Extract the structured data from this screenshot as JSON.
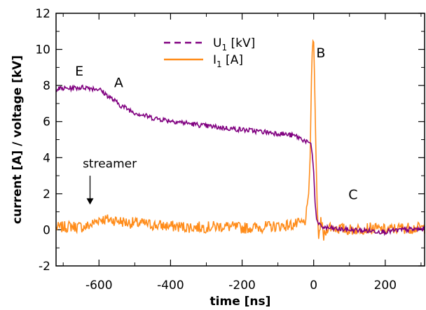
{
  "chart_data": {
    "type": "line",
    "title": "",
    "xlabel": "time [ns]",
    "ylabel": "current [A] / voltage [kV]",
    "xlim": [
      -720,
      310
    ],
    "ylim": [
      -2,
      12
    ],
    "x_ticks": [
      -600,
      -400,
      -200,
      0,
      200
    ],
    "y_ticks": [
      -2,
      0,
      2,
      4,
      6,
      8,
      10,
      12
    ],
    "grid": false,
    "legend_position": "top-center",
    "series": [
      {
        "name": "U1 [kV]",
        "legend_main": "U",
        "legend_sub": "1",
        "legend_unit": " [kV]",
        "color": "#800080",
        "style": "dashed",
        "x": [
          -720,
          -680,
          -640,
          -600,
          -580,
          -560,
          -540,
          -500,
          -450,
          -400,
          -350,
          -300,
          -250,
          -200,
          -150,
          -100,
          -50,
          -20,
          -8,
          -4,
          0,
          4,
          8,
          15,
          25,
          40,
          60,
          100,
          150,
          200,
          250,
          310
        ],
        "y": [
          7.8,
          7.85,
          7.9,
          7.8,
          7.5,
          7.2,
          6.9,
          6.5,
          6.2,
          6.05,
          5.9,
          5.75,
          5.65,
          5.55,
          5.45,
          5.35,
          5.2,
          4.9,
          4.8,
          4.2,
          3.2,
          1.5,
          0.6,
          0.25,
          0.15,
          0.1,
          0.05,
          0.0,
          -0.05,
          -0.1,
          0.0,
          0.05
        ]
      },
      {
        "name": "I1 [A]",
        "legend_main": "I",
        "legend_sub": "1",
        "legend_unit": " [A]",
        "color": "#ff8c1a",
        "style": "solid",
        "x": [
          -720,
          -680,
          -640,
          -620,
          -600,
          -560,
          -520,
          -480,
          -440,
          -400,
          -350,
          -300,
          -250,
          -200,
          -150,
          -100,
          -50,
          -25,
          -15,
          -10,
          -6,
          -3,
          0,
          3,
          6,
          10,
          14,
          20,
          28,
          40,
          60,
          100,
          150,
          200,
          250,
          310
        ],
        "y": [
          0.1,
          0.2,
          0.15,
          0.3,
          0.6,
          0.55,
          0.4,
          0.35,
          0.25,
          0.2,
          0.15,
          0.15,
          0.2,
          0.1,
          0.15,
          0.2,
          0.3,
          0.4,
          1.5,
          4.0,
          8.5,
          10.5,
          10.4,
          8.0,
          4.5,
          1.2,
          -0.5,
          0.6,
          -0.4,
          0.2,
          0.1,
          0.0,
          0.1,
          0.0,
          0.1,
          0.1
        ]
      }
    ],
    "annotations": [
      {
        "text": "E",
        "x": -655,
        "y": 8.55,
        "style": "big"
      },
      {
        "text": "A",
        "x": -545,
        "y": 7.9,
        "style": "big"
      },
      {
        "text": "B",
        "x": 20,
        "y": 9.55,
        "style": "big"
      },
      {
        "text": "C",
        "x": 110,
        "y": 1.7,
        "style": "big"
      },
      {
        "text": "streamer",
        "x": -570,
        "y": 3.45,
        "style": "small"
      }
    ],
    "arrow": {
      "x": -625,
      "y_from": 3.0,
      "y_to": 1.4
    }
  }
}
